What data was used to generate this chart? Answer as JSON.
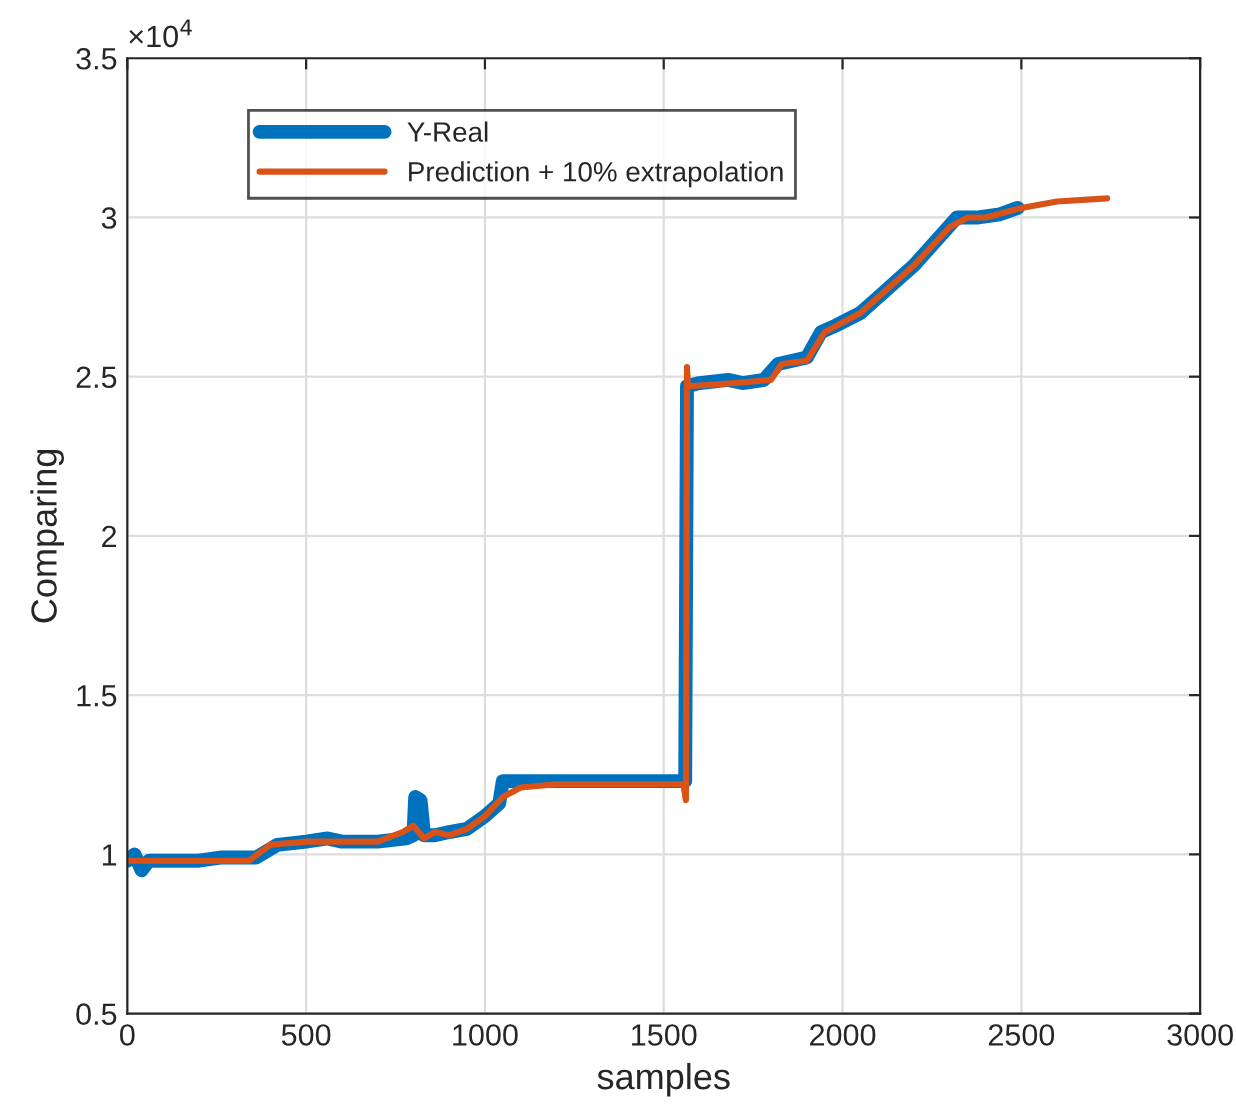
{
  "chart_data": {
    "type": "line",
    "xlabel": "samples",
    "ylabel": "Comparing",
    "annotations": [
      "×10$^{4}$"
    ],
    "xlim": [
      0,
      3000
    ],
    "xticks": [
      0,
      500,
      1000,
      1500,
      2000,
      2500,
      3000
    ],
    "ylim": [
      0.5,
      3.5
    ],
    "yticks": [
      0.5,
      1,
      1.5,
      2,
      2.5,
      3,
      3.5
    ],
    "grid": true,
    "legend": "top left",
    "line_style": "solid",
    "marker": "none",
    "series": [
      {
        "name": "Y-Real",
        "color": "#0072bd",
        "x": [
          0,
          20,
          40,
          60,
          200,
          260,
          300,
          360,
          420,
          500,
          560,
          600,
          700,
          780,
          800,
          805,
          820,
          830,
          860,
          900,
          950,
          1000,
          1040,
          1050,
          1100,
          1560,
          1565,
          1600,
          1680,
          1720,
          1780,
          1820,
          1860,
          1900,
          1940,
          1980,
          2050,
          2100,
          2200,
          2280,
          2320,
          2380,
          2440,
          2490
        ],
        "values": [
          0.98,
          1.0,
          0.95,
          0.98,
          0.98,
          0.99,
          0.99,
          0.99,
          1.03,
          1.04,
          1.05,
          1.04,
          1.04,
          1.05,
          1.06,
          1.18,
          1.17,
          1.06,
          1.06,
          1.07,
          1.08,
          1.12,
          1.16,
          1.23,
          1.23,
          1.23,
          2.47,
          2.48,
          2.49,
          2.48,
          2.49,
          2.54,
          2.55,
          2.56,
          2.64,
          2.66,
          2.7,
          2.75,
          2.85,
          2.95,
          3.0,
          3.0,
          3.01,
          3.03
        ]
      },
      {
        "name": "Prediction + 10% extrapolation",
        "color": "#d95319",
        "x": [
          0,
          200,
          340,
          400,
          500,
          700,
          770,
          800,
          830,
          860,
          900,
          950,
          1000,
          1050,
          1100,
          1200,
          1555,
          1562,
          1565,
          1568,
          1700,
          1800,
          1830,
          1900,
          1950,
          2050,
          2200,
          2300,
          2350,
          2400,
          2500,
          2600,
          2740
        ],
        "values": [
          0.98,
          0.98,
          0.98,
          1.03,
          1.04,
          1.04,
          1.07,
          1.09,
          1.05,
          1.07,
          1.06,
          1.08,
          1.12,
          1.18,
          1.21,
          1.22,
          1.22,
          1.17,
          2.53,
          2.47,
          2.48,
          2.49,
          2.54,
          2.55,
          2.64,
          2.7,
          2.85,
          2.97,
          3.0,
          3.0,
          3.03,
          3.05,
          3.06
        ]
      }
    ]
  }
}
